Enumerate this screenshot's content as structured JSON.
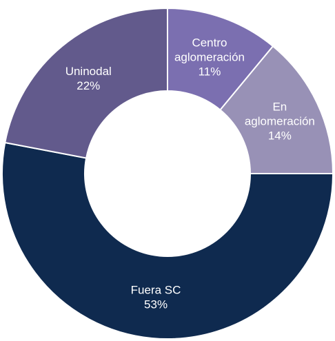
{
  "chart_data": {
    "type": "pie",
    "variant": "donut",
    "slices": [
      {
        "label_lines": [
          "Centro",
          "aglomeración"
        ],
        "value": 11,
        "value_label": "11%",
        "color": "#7b6fb0"
      },
      {
        "label_lines": [
          "En",
          "aglomeración"
        ],
        "value": 14,
        "value_label": "14%",
        "color": "#9891b6"
      },
      {
        "label_lines": [
          "Fuera SC"
        ],
        "value": 53,
        "value_label": "53%",
        "color": "#0f2a4f"
      },
      {
        "label_lines": [
          "Uninodal"
        ],
        "value": 22,
        "value_label": "22%",
        "color": "#625a8c"
      }
    ],
    "start": "12 o'clock",
    "direction": "clockwise",
    "legend": "none"
  }
}
